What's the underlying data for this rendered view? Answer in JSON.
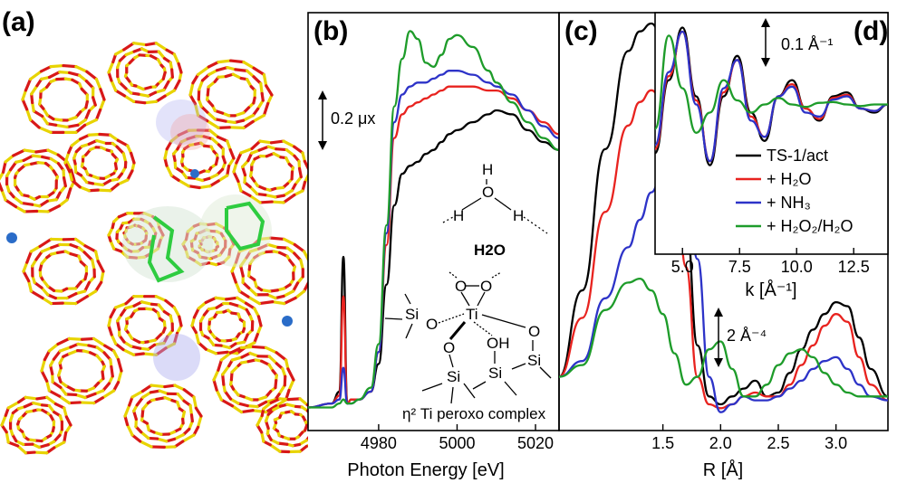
{
  "panels": {
    "a": "(a)",
    "b": "(b)",
    "c": "(c)",
    "d": "(d)"
  },
  "colors": {
    "black": "#000000",
    "red": "#e8231f",
    "blue": "#2d33c8",
    "green": "#1e9c2a",
    "framework_si": "#e8d400",
    "framework_o": "#d81818",
    "molecule": "#2ecc40"
  },
  "molecule_labels": {
    "water": "H2O",
    "water_atoms": [
      "H",
      "O",
      "H"
    ],
    "complex_atoms": [
      "O",
      "O",
      "Ti",
      "Si",
      "O",
      "O",
      "OH",
      "O",
      "Si",
      "Si",
      "Si"
    ],
    "complex_caption": "η² Ti peroxo complex"
  },
  "chart_data": [
    {
      "id": "b",
      "type": "line",
      "xlabel": "Photon Energy [eV]",
      "xticks": [
        4980,
        5000,
        5020
      ],
      "xlim": [
        4962,
        5026
      ],
      "ylim": [
        0,
        1.0
      ],
      "scale_bar": "0.2 μx",
      "grid": false,
      "series": [
        {
          "color": "#000000",
          "x": [
            4962,
            4968,
            4970,
            4971,
            4972,
            4973,
            4975,
            4978,
            4980,
            4982,
            4984,
            4986,
            4988,
            4990,
            4992,
            4994,
            4996,
            4998,
            5000,
            5004,
            5008,
            5010,
            5014,
            5018,
            5022,
            5026
          ],
          "y": [
            0.04,
            0.05,
            0.08,
            0.42,
            0.05,
            0.06,
            0.06,
            0.08,
            0.15,
            0.35,
            0.55,
            0.63,
            0.65,
            0.66,
            0.68,
            0.69,
            0.71,
            0.73,
            0.74,
            0.76,
            0.78,
            0.79,
            0.78,
            0.74,
            0.71,
            0.69
          ]
        },
        {
          "color": "#e8231f",
          "x": [
            4962,
            4968,
            4970,
            4971,
            4972,
            4973,
            4975,
            4978,
            4980,
            4982,
            4984,
            4986,
            4988,
            4990,
            4992,
            4994,
            4996,
            4998,
            5000,
            5004,
            5008,
            5010,
            5014,
            5018,
            5022,
            5026
          ],
          "y": [
            0.04,
            0.05,
            0.07,
            0.32,
            0.05,
            0.06,
            0.06,
            0.08,
            0.18,
            0.45,
            0.72,
            0.78,
            0.8,
            0.81,
            0.82,
            0.83,
            0.84,
            0.85,
            0.85,
            0.85,
            0.84,
            0.84,
            0.82,
            0.79,
            0.76,
            0.73
          ]
        },
        {
          "color": "#2d33c8",
          "x": [
            4962,
            4968,
            4970,
            4971,
            4972,
            4973,
            4975,
            4978,
            4980,
            4982,
            4984,
            4986,
            4988,
            4990,
            4992,
            4994,
            4996,
            4998,
            5000,
            5004,
            5008,
            5010,
            5014,
            5018,
            5022,
            5026
          ],
          "y": [
            0.04,
            0.05,
            0.06,
            0.14,
            0.05,
            0.05,
            0.06,
            0.08,
            0.18,
            0.48,
            0.76,
            0.83,
            0.85,
            0.86,
            0.86,
            0.87,
            0.88,
            0.89,
            0.89,
            0.88,
            0.86,
            0.85,
            0.83,
            0.79,
            0.75,
            0.72
          ]
        },
        {
          "color": "#1e9c2a",
          "x": [
            4962,
            4968,
            4970,
            4971,
            4972,
            4973,
            4975,
            4978,
            4980,
            4982,
            4984,
            4986,
            4988,
            4990,
            4992,
            4994,
            4996,
            4998,
            5000,
            5004,
            5008,
            5010,
            5014,
            5018,
            5022,
            5026
          ],
          "y": [
            0.04,
            0.04,
            0.05,
            0.06,
            0.05,
            0.05,
            0.06,
            0.09,
            0.2,
            0.5,
            0.8,
            0.92,
            0.99,
            0.97,
            0.91,
            0.9,
            0.93,
            0.97,
            0.98,
            0.95,
            0.89,
            0.86,
            0.81,
            0.76,
            0.72,
            0.69
          ]
        }
      ]
    },
    {
      "id": "c",
      "type": "line",
      "xlabel": "R [Å]",
      "xticks": [
        1.5,
        2.0,
        2.5,
        3.0
      ],
      "xlim": [
        0.6,
        3.45
      ],
      "ylim": [
        0,
        1.0
      ],
      "scale_bar": "2 Å⁻⁴",
      "grid": false,
      "series": [
        {
          "color": "#000000",
          "x": [
            0.6,
            0.8,
            1.0,
            1.2,
            1.3,
            1.4,
            1.5,
            1.6,
            1.7,
            1.8,
            1.9,
            2.0,
            2.1,
            2.2,
            2.3,
            2.4,
            2.5,
            2.6,
            2.7,
            2.8,
            2.9,
            3.0,
            3.1,
            3.2,
            3.3,
            3.45
          ],
          "y": [
            0.1,
            0.32,
            0.68,
            0.93,
            0.98,
            1.0,
            0.96,
            0.8,
            0.5,
            0.18,
            0.05,
            0.03,
            0.05,
            0.07,
            0.09,
            0.05,
            0.06,
            0.11,
            0.17,
            0.22,
            0.26,
            0.29,
            0.28,
            0.2,
            0.12,
            0.05
          ]
        },
        {
          "color": "#e8231f",
          "x": [
            0.6,
            0.8,
            1.0,
            1.2,
            1.3,
            1.4,
            1.5,
            1.6,
            1.7,
            1.8,
            1.9,
            2.0,
            2.1,
            2.2,
            2.3,
            2.4,
            2.5,
            2.6,
            2.7,
            2.8,
            2.9,
            3.0,
            3.1,
            3.2,
            3.3,
            3.45
          ],
          "y": [
            0.1,
            0.25,
            0.52,
            0.74,
            0.8,
            0.83,
            0.8,
            0.66,
            0.38,
            0.1,
            0.03,
            0.02,
            0.03,
            0.05,
            0.06,
            0.05,
            0.05,
            0.08,
            0.13,
            0.18,
            0.23,
            0.26,
            0.24,
            0.15,
            0.08,
            0.04
          ]
        },
        {
          "color": "#2d33c8",
          "x": [
            0.6,
            0.8,
            1.0,
            1.2,
            1.3,
            1.4,
            1.5,
            1.6,
            1.7,
            1.8,
            1.9,
            2.0,
            2.1,
            2.2,
            2.3,
            2.4,
            2.5,
            2.6,
            2.7,
            2.8,
            2.9,
            3.0,
            3.1,
            3.2,
            3.3,
            3.45
          ],
          "y": [
            0.1,
            0.14,
            0.3,
            0.43,
            0.5,
            0.57,
            0.63,
            0.67,
            0.62,
            0.4,
            0.1,
            0.01,
            0.03,
            0.05,
            0.04,
            0.04,
            0.05,
            0.07,
            0.09,
            0.12,
            0.14,
            0.15,
            0.12,
            0.08,
            0.05,
            0.04
          ]
        },
        {
          "color": "#1e9c2a",
          "x": [
            0.6,
            0.8,
            1.0,
            1.2,
            1.3,
            1.4,
            1.5,
            1.6,
            1.7,
            1.8,
            1.9,
            2.0,
            2.1,
            2.2,
            2.3,
            2.4,
            2.5,
            2.6,
            2.7,
            2.8,
            2.9,
            3.0,
            3.1,
            3.2,
            3.3,
            3.45
          ],
          "y": [
            0.1,
            0.13,
            0.27,
            0.34,
            0.35,
            0.32,
            0.26,
            0.16,
            0.08,
            0.1,
            0.17,
            0.19,
            0.12,
            0.05,
            0.05,
            0.08,
            0.13,
            0.16,
            0.17,
            0.15,
            0.11,
            0.08,
            0.06,
            0.05,
            0.05,
            0.05
          ]
        }
      ]
    },
    {
      "id": "d",
      "type": "line",
      "xlabel": "k [Å⁻¹]",
      "xticks": [
        5.0,
        7.5,
        10.0,
        12.5
      ],
      "xlim": [
        3.8,
        14.0
      ],
      "ylim": [
        -1.0,
        1.0
      ],
      "scale_bar": "0.1 Å⁻¹",
      "grid": false,
      "legend_position": "right",
      "legend": [
        "TS-1/act",
        "+ H₂O",
        "+ NH₃",
        "+ H₂O₂/H₂O"
      ],
      "series": [
        {
          "color": "#000000",
          "x": [
            3.8,
            4.4,
            5.0,
            5.6,
            6.2,
            6.8,
            7.4,
            8.0,
            8.6,
            9.2,
            9.8,
            10.4,
            11.0,
            11.6,
            12.2,
            12.8,
            13.4,
            14.0
          ],
          "y": [
            -0.6,
            0.3,
            0.95,
            0.1,
            -0.75,
            0.1,
            0.6,
            -0.1,
            -0.45,
            0.1,
            0.3,
            -0.05,
            -0.2,
            0.1,
            0.15,
            -0.05,
            -0.1,
            0.0
          ]
        },
        {
          "color": "#e8231f",
          "x": [
            3.8,
            4.4,
            5.0,
            5.6,
            6.2,
            6.8,
            7.4,
            8.0,
            8.6,
            9.2,
            9.8,
            10.4,
            11.0,
            11.6,
            12.2,
            12.8,
            13.4,
            14.0
          ],
          "y": [
            -0.55,
            0.35,
            0.9,
            0.05,
            -0.7,
            0.15,
            0.55,
            -0.15,
            -0.4,
            0.1,
            0.25,
            -0.05,
            -0.18,
            0.08,
            0.12,
            -0.05,
            -0.08,
            0.0
          ]
        },
        {
          "color": "#2d33c8",
          "x": [
            3.8,
            4.4,
            5.0,
            5.6,
            6.2,
            6.8,
            7.4,
            8.0,
            8.6,
            9.2,
            9.8,
            10.4,
            11.0,
            11.6,
            12.2,
            12.8,
            13.4,
            14.0
          ],
          "y": [
            -0.5,
            0.4,
            0.9,
            0.0,
            -0.7,
            0.2,
            0.55,
            -0.2,
            -0.4,
            0.1,
            0.22,
            -0.1,
            -0.15,
            0.06,
            0.1,
            -0.05,
            -0.08,
            0.0
          ]
        },
        {
          "color": "#1e9c2a",
          "x": [
            3.8,
            4.4,
            5.0,
            5.6,
            6.2,
            6.8,
            7.4,
            8.0,
            8.6,
            9.2,
            9.8,
            10.4,
            11.0,
            11.6,
            12.2,
            12.8,
            13.4,
            14.0
          ],
          "y": [
            -0.3,
            0.85,
            0.2,
            -0.35,
            -0.1,
            0.3,
            0.05,
            -0.1,
            0.0,
            0.08,
            0.0,
            -0.03,
            0.02,
            0.03,
            0.0,
            -0.02,
            0.0,
            0.0
          ]
        }
      ]
    }
  ]
}
